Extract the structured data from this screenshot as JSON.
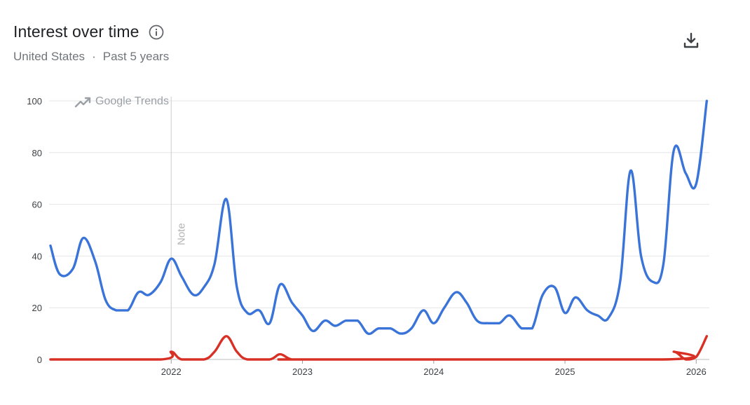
{
  "header": {
    "title": "Interest over time",
    "region": "United States",
    "separator": "·",
    "period": "Past 5 years"
  },
  "icons": {
    "info": "info-icon",
    "download": "download-icon",
    "watermark": "trending-icon"
  },
  "watermark": "Google Trends",
  "note_label": "Note",
  "colors": {
    "series_blue": "#3b74d8",
    "series_red": "#d93025",
    "grid": "#e6e6e6",
    "note_line": "#d4d4d4"
  },
  "chart_data": {
    "type": "line",
    "ylim": [
      0,
      100
    ],
    "yticks": [
      0,
      20,
      40,
      60,
      80,
      100
    ],
    "xticks": [
      "2022",
      "2023",
      "2024",
      "2025",
      "2026"
    ],
    "xlim": [
      2021.08,
      2026.1
    ],
    "grid": true,
    "annotations": [
      {
        "label": "Note",
        "x": 2022.0
      }
    ],
    "series": [
      {
        "color": "#3b74d8",
        "x": [
          2021.08,
          2021.15,
          2021.25,
          2021.33,
          2021.42,
          2021.5,
          2021.58,
          2021.67,
          2021.75,
          2021.83,
          2021.92,
          2022.0,
          2022.08,
          2022.17,
          2022.25,
          2022.33,
          2022.42,
          2022.5,
          2022.58,
          2022.67,
          2022.75,
          2022.83,
          2022.92,
          2023.0,
          2023.08,
          2023.17,
          2023.25,
          2023.33,
          2023.42,
          2023.5,
          2023.58,
          2023.67,
          2023.75,
          2023.83,
          2023.92,
          2024.0,
          2024.08,
          2024.17,
          2024.25,
          2024.33,
          2024.42,
          2024.5,
          2024.58,
          2024.67,
          2024.75,
          2024.83,
          2024.92,
          2025.0,
          2025.08,
          2025.17,
          2025.25,
          2025.33,
          2025.42,
          2025.5,
          2025.58,
          2025.67,
          2025.75,
          2025.83,
          2025.92,
          2026.0,
          2026.08
        ],
        "values": [
          44,
          33,
          35,
          47,
          38,
          23,
          19,
          19,
          26,
          25,
          30,
          39,
          32,
          25,
          28,
          37,
          62,
          28,
          18,
          19,
          14,
          29,
          22,
          17,
          11,
          15,
          13,
          15,
          15,
          10,
          12,
          12,
          10,
          12,
          19,
          14,
          20,
          26,
          22,
          15,
          14,
          14,
          17,
          12,
          12,
          25,
          28,
          18,
          24,
          19,
          17,
          16,
          30,
          73,
          40,
          30,
          37,
          81,
          72,
          68,
          100
        ]
      },
      {
        "color": "#d93025",
        "x": [
          2021.08,
          2021.92,
          2022.0,
          2022.08,
          2022.25,
          2022.33,
          2022.42,
          2022.5,
          2022.58,
          2022.75,
          2022.83,
          2022.92,
          2023.08,
          2025.75,
          2025.83,
          2025.92,
          2026.0,
          2026.08
        ],
        "values": [
          0,
          0,
          3,
          0,
          0,
          3,
          9,
          3,
          0,
          0,
          2,
          0,
          0,
          0,
          3,
          0,
          1,
          9
        ]
      }
    ]
  }
}
